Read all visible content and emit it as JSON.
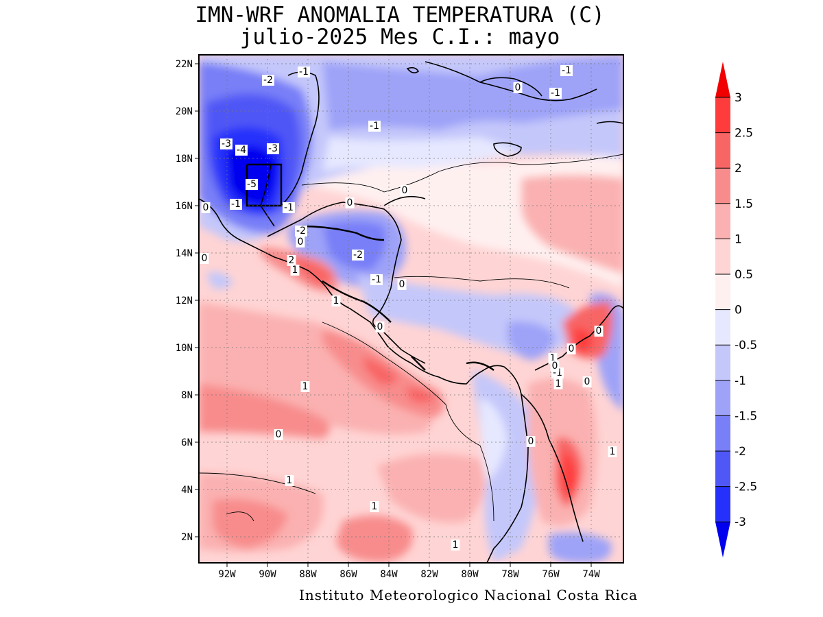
{
  "title": {
    "line1": "IMN-WRF  ANOMALIA TEMPERATURA (C)",
    "line2": "julio-2025 Mes C.I.: mayo"
  },
  "footer": "Instituto Meteorologico Nacional Costa Rica",
  "map": {
    "lat_ticks": [
      "22N",
      "20N",
      "18N",
      "16N",
      "14N",
      "12N",
      "10N",
      "8N",
      "6N",
      "4N",
      "2N"
    ],
    "lon_ticks": [
      "92W",
      "90W",
      "88W",
      "86W",
      "84W",
      "82W",
      "80W",
      "78W",
      "76W",
      "74W"
    ],
    "contour_labels": [
      "-1",
      "-2",
      "-1",
      "-1",
      "0",
      "-1",
      "-3",
      "-4",
      "-3",
      "-5",
      "0",
      "-1",
      "-1",
      "0",
      "0",
      "-2",
      "0",
      "0",
      "-2",
      "2",
      "1",
      "-1",
      "0",
      "1",
      "0",
      "0",
      "1",
      "0",
      "-1",
      "1",
      "0",
      "1",
      "0",
      "1",
      "1",
      "1",
      "1",
      "0",
      "0"
    ]
  },
  "colorbar": {
    "levels": [
      "3",
      "2.5",
      "2",
      "1.5",
      "1",
      "0.5",
      "0",
      "-0.5",
      "-1",
      "-1.5",
      "-2",
      "-2.5",
      "-3"
    ],
    "colors": [
      "#f00000",
      "#ff3c3c",
      "#f86565",
      "#f88c8c",
      "#fbb1b1",
      "#ffd4d4",
      "#fff0f0",
      "#e6e8ff",
      "#c4c7fa",
      "#9ea3f8",
      "#787ff7",
      "#4f57f6",
      "#2530fb",
      "#0000ee"
    ]
  }
}
